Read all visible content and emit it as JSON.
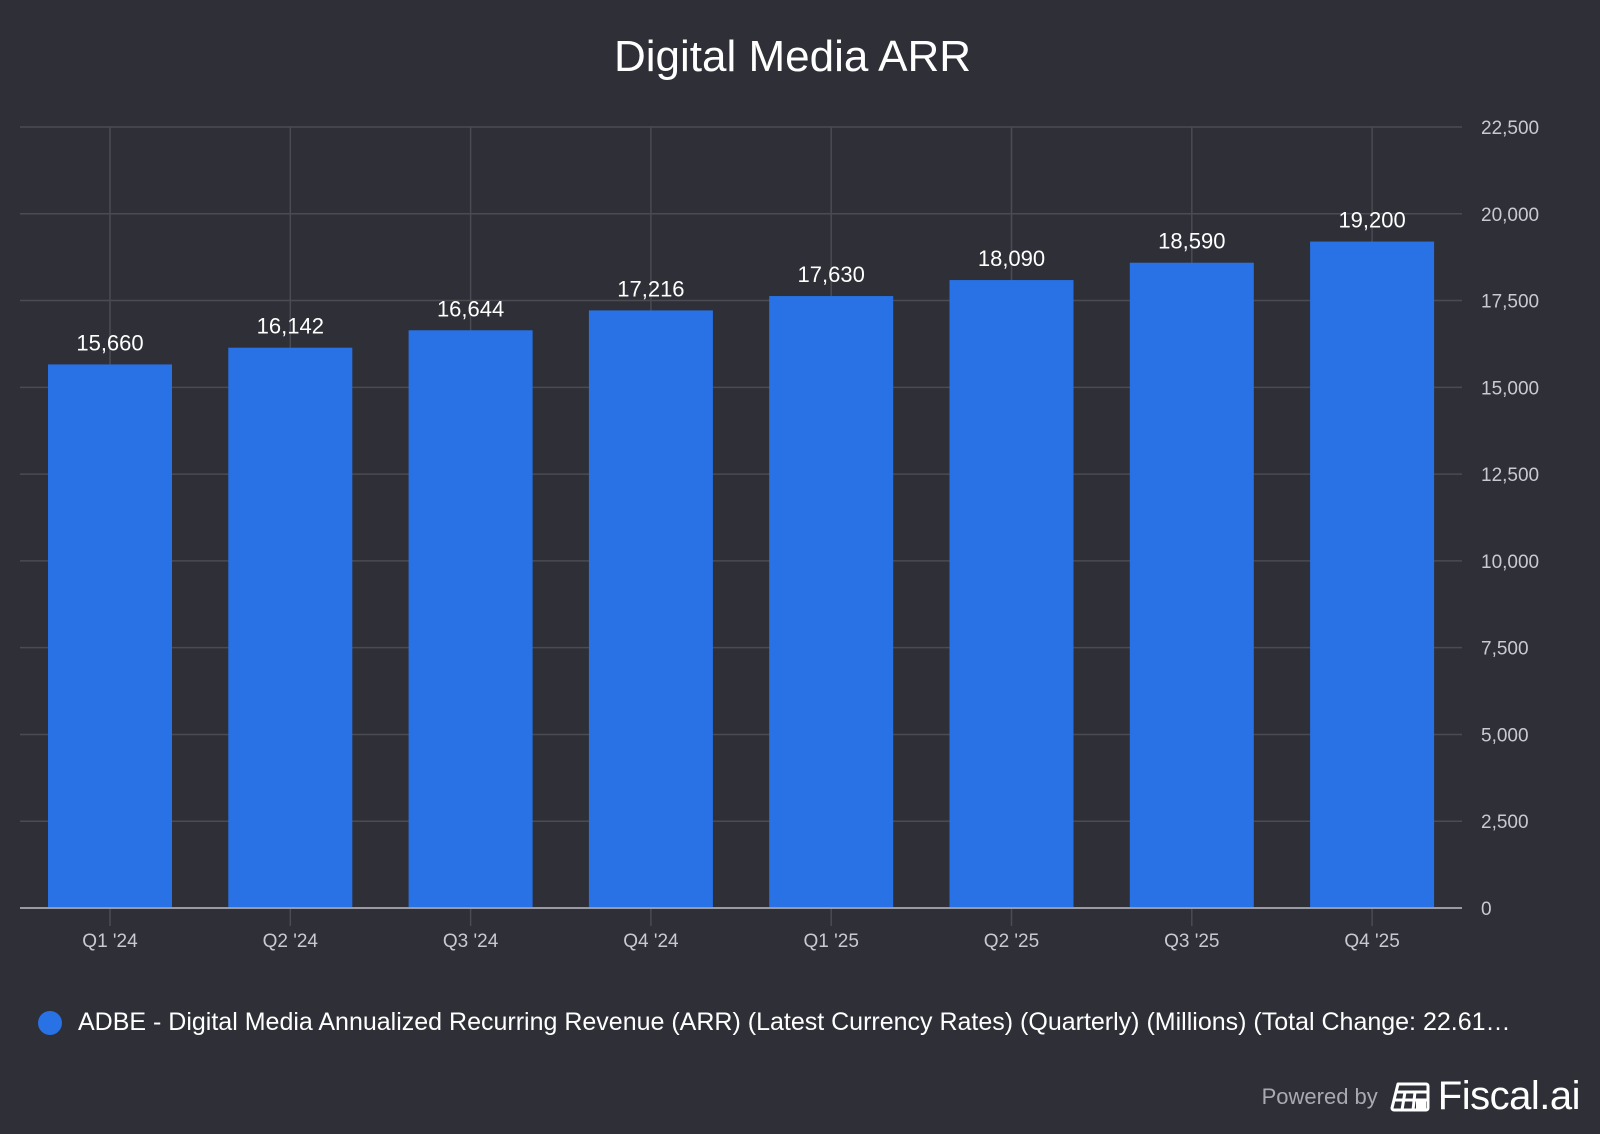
{
  "chart_data": {
    "type": "bar",
    "title": "Digital Media ARR",
    "xlabel": "",
    "ylabel": "",
    "categories": [
      "Q1 '24",
      "Q2 '24",
      "Q3 '24",
      "Q4 '24",
      "Q1 '25",
      "Q2 '25",
      "Q3 '25",
      "Q4 '25"
    ],
    "series": [
      {
        "name": "ADBE - Digital Media Annualized Recurring Revenue (ARR) (Latest Currency Rates) (Quarterly) (Millions) (Total Change: 22.61…",
        "values": [
          15660,
          16142,
          16644,
          17216,
          17630,
          18090,
          18590,
          19200
        ],
        "labels": [
          "15,660",
          "16,142",
          "16,644",
          "17,216",
          "17,630",
          "18,090",
          "18,590",
          "19,200"
        ],
        "color": "#2872e6"
      }
    ],
    "ylim": [
      0,
      22500
    ],
    "yticks": [
      0,
      2500,
      5000,
      7500,
      10000,
      12500,
      15000,
      17500,
      20000,
      22500
    ],
    "ytick_labels": [
      "0",
      "2,500",
      "5,000",
      "7,500",
      "10,000",
      "12,500",
      "15,000",
      "17,500",
      "20,000",
      "22,500"
    ],
    "y_axis_side": "right",
    "grid": true,
    "legend_position": "bottom-left"
  },
  "colors": {
    "background": "#2e2f37",
    "bar": "#2872e6",
    "grid": "#4a4b53",
    "axis": "#9a9ba2",
    "tick_text": "#c9cad0"
  },
  "footer": {
    "powered_by": "Powered by",
    "brand": "Fiscal.ai",
    "brand_icon": "fiscal-ai-logo-icon"
  }
}
